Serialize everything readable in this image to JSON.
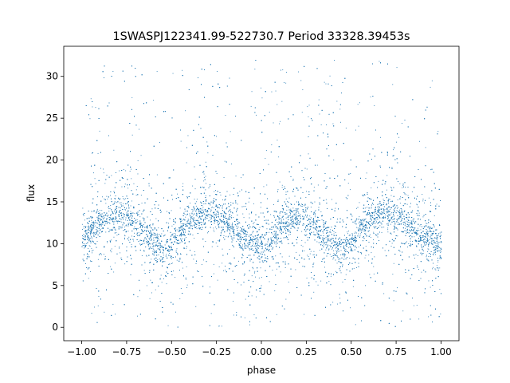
{
  "chart_data": {
    "type": "scatter",
    "title": "1SWASPJ122341.99-522730.7 Period 33328.39453s",
    "xlabel": "phase",
    "ylabel": "flux",
    "xlim": [
      -1.1,
      1.1
    ],
    "ylim": [
      -1.6,
      33.6
    ],
    "x_ticks": [
      -1.0,
      -0.75,
      -0.5,
      -0.25,
      0.0,
      0.25,
      0.5,
      0.75,
      1.0
    ],
    "x_tick_labels": [
      "−1.00",
      "−0.75",
      "−0.50",
      "−0.25",
      "0.00",
      "0.25",
      "0.50",
      "0.75",
      "1.00"
    ],
    "y_ticks": [
      0,
      5,
      10,
      15,
      20,
      25,
      30
    ],
    "y_tick_labels": [
      "0",
      "5",
      "10",
      "15",
      "20",
      "25",
      "30"
    ],
    "grid": false,
    "marker_color": "#1f77b4",
    "series": [
      {
        "phase": [
          -1.0,
          -0.95,
          -0.9,
          -0.85,
          -0.8,
          -0.75,
          -0.7,
          -0.65,
          -0.6,
          -0.55,
          -0.5,
          -0.45,
          -0.4,
          -0.35,
          -0.3,
          -0.25,
          -0.2,
          -0.15,
          -0.1,
          -0.05,
          0.0,
          0.05,
          0.1,
          0.15,
          0.2,
          0.25,
          0.3,
          0.35,
          0.4,
          0.45,
          0.5,
          0.55,
          0.6,
          0.65,
          0.7,
          0.75,
          0.8,
          0.85,
          0.9,
          0.95,
          1.0
        ],
        "flux_center": [
          10.5,
          11.7,
          12.6,
          13.3,
          13.7,
          13.5,
          12.7,
          11.5,
          10.5,
          9.3,
          9.8,
          11.3,
          12.6,
          13.5,
          13.8,
          13.5,
          12.7,
          11.6,
          10.7,
          10.0,
          9.5,
          10.5,
          12.0,
          12.9,
          13.4,
          13.0,
          12.0,
          11.0,
          10.2,
          9.2,
          10.0,
          11.6,
          12.8,
          13.5,
          13.8,
          13.5,
          12.7,
          11.7,
          10.9,
          10.2,
          9.8
        ],
        "flux_min": 0,
        "flux_max": 32
      }
    ]
  }
}
